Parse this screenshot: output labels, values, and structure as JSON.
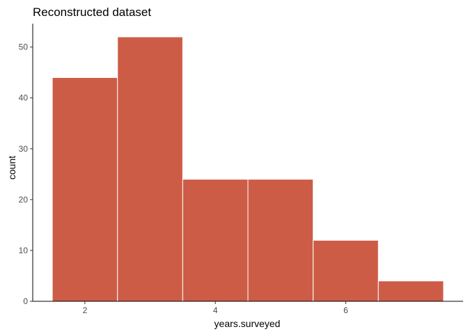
{
  "chart_data": {
    "type": "bar",
    "title": "Reconstructed dataset",
    "xlabel": "years.surveyed",
    "ylabel": "count",
    "bins": [
      {
        "x0": 1.5,
        "x1": 2.5,
        "count": 44
      },
      {
        "x0": 2.5,
        "x1": 3.5,
        "count": 52
      },
      {
        "x0": 3.5,
        "x1": 4.5,
        "count": 24
      },
      {
        "x0": 4.5,
        "x1": 5.5,
        "count": 24
      },
      {
        "x0": 5.5,
        "x1": 6.5,
        "count": 12
      },
      {
        "x0": 6.5,
        "x1": 7.5,
        "count": 4
      }
    ],
    "xlim": [
      1.2,
      7.8
    ],
    "ylim": [
      0,
      54.6
    ],
    "x_ticks": [
      2,
      4,
      6
    ],
    "y_ticks": [
      0,
      10,
      20,
      30,
      40,
      50
    ],
    "grid": false,
    "legend": "none",
    "colors": {
      "bar_fill": "#cd5c47",
      "bar_outline": "#ffffff",
      "axis": "#000000",
      "tick_text": "#4d4d4d"
    }
  }
}
